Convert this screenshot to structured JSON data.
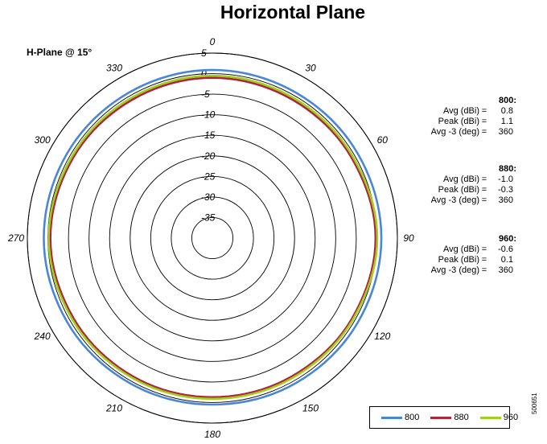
{
  "chart_data": {
    "type": "polar",
    "title": "Horizontal Plane",
    "subtitle": "H-Plane @ 15°",
    "radial_ticks": [
      "5",
      "0",
      "-5",
      "-10",
      "-15",
      "-20",
      "-25",
      "-30",
      "-35"
    ],
    "radial_values": [
      5,
      0,
      -5,
      -10,
      -15,
      -20,
      -25,
      -30,
      -35
    ],
    "radial_range": [
      -40,
      5
    ],
    "angle_ticks": [
      "0",
      "30",
      "60",
      "90",
      "120",
      "150",
      "180",
      "210",
      "240",
      "270",
      "300",
      "330"
    ],
    "grid": true,
    "legend_position": "bottom-right",
    "series": [
      {
        "name": "800",
        "color": "#4A86D8",
        "angles": [
          0,
          30,
          60,
          90,
          120,
          150,
          180,
          210,
          240,
          270,
          300,
          330
        ],
        "values": [
          0.9,
          0.8,
          0.9,
          1.1,
          0.9,
          0.7,
          0.5,
          0.6,
          0.8,
          1.0,
          0.9,
          0.8
        ]
      },
      {
        "name": "880",
        "color": "#B0243A",
        "angles": [
          0,
          30,
          60,
          90,
          120,
          150,
          180,
          210,
          240,
          270,
          300,
          330
        ],
        "values": [
          -1.0,
          -1.1,
          -0.9,
          -0.3,
          -0.8,
          -1.2,
          -1.3,
          -1.2,
          -1.0,
          -0.6,
          -0.9,
          -1.1
        ]
      },
      {
        "name": "960",
        "color": "#9FD020",
        "angles": [
          0,
          30,
          60,
          90,
          120,
          150,
          180,
          210,
          240,
          270,
          300,
          330
        ],
        "values": [
          -0.5,
          -0.6,
          -0.5,
          0.1,
          -0.5,
          -0.8,
          -0.9,
          -0.8,
          -0.6,
          -0.2,
          -0.5,
          -0.6
        ]
      }
    ]
  },
  "stats": [
    {
      "head": "800:",
      "rows": [
        {
          "label": "Avg (dBi)",
          "value": "0.8"
        },
        {
          "label": "Peak (dBi)",
          "value": "1.1"
        },
        {
          "label": "Avg -3 (deg)",
          "value": "360"
        }
      ]
    },
    {
      "head": "880:",
      "rows": [
        {
          "label": "Avg (dBi)",
          "value": "-1.0"
        },
        {
          "label": "Peak (dBi)",
          "value": "-0.3"
        },
        {
          "label": "Avg -3 (deg)",
          "value": "360"
        }
      ]
    },
    {
      "head": "960:",
      "rows": [
        {
          "label": "Avg (dBi)",
          "value": "-0.6"
        },
        {
          "label": "Peak (dBi)",
          "value": "0.1"
        },
        {
          "label": "Avg -3 (deg)",
          "value": "360"
        }
      ]
    }
  ],
  "legend": [
    "800",
    "880",
    "960"
  ],
  "figure_id": "500651",
  "colors": {
    "800": "#4A86D8",
    "880": "#B0243A",
    "960": "#9FD020"
  }
}
